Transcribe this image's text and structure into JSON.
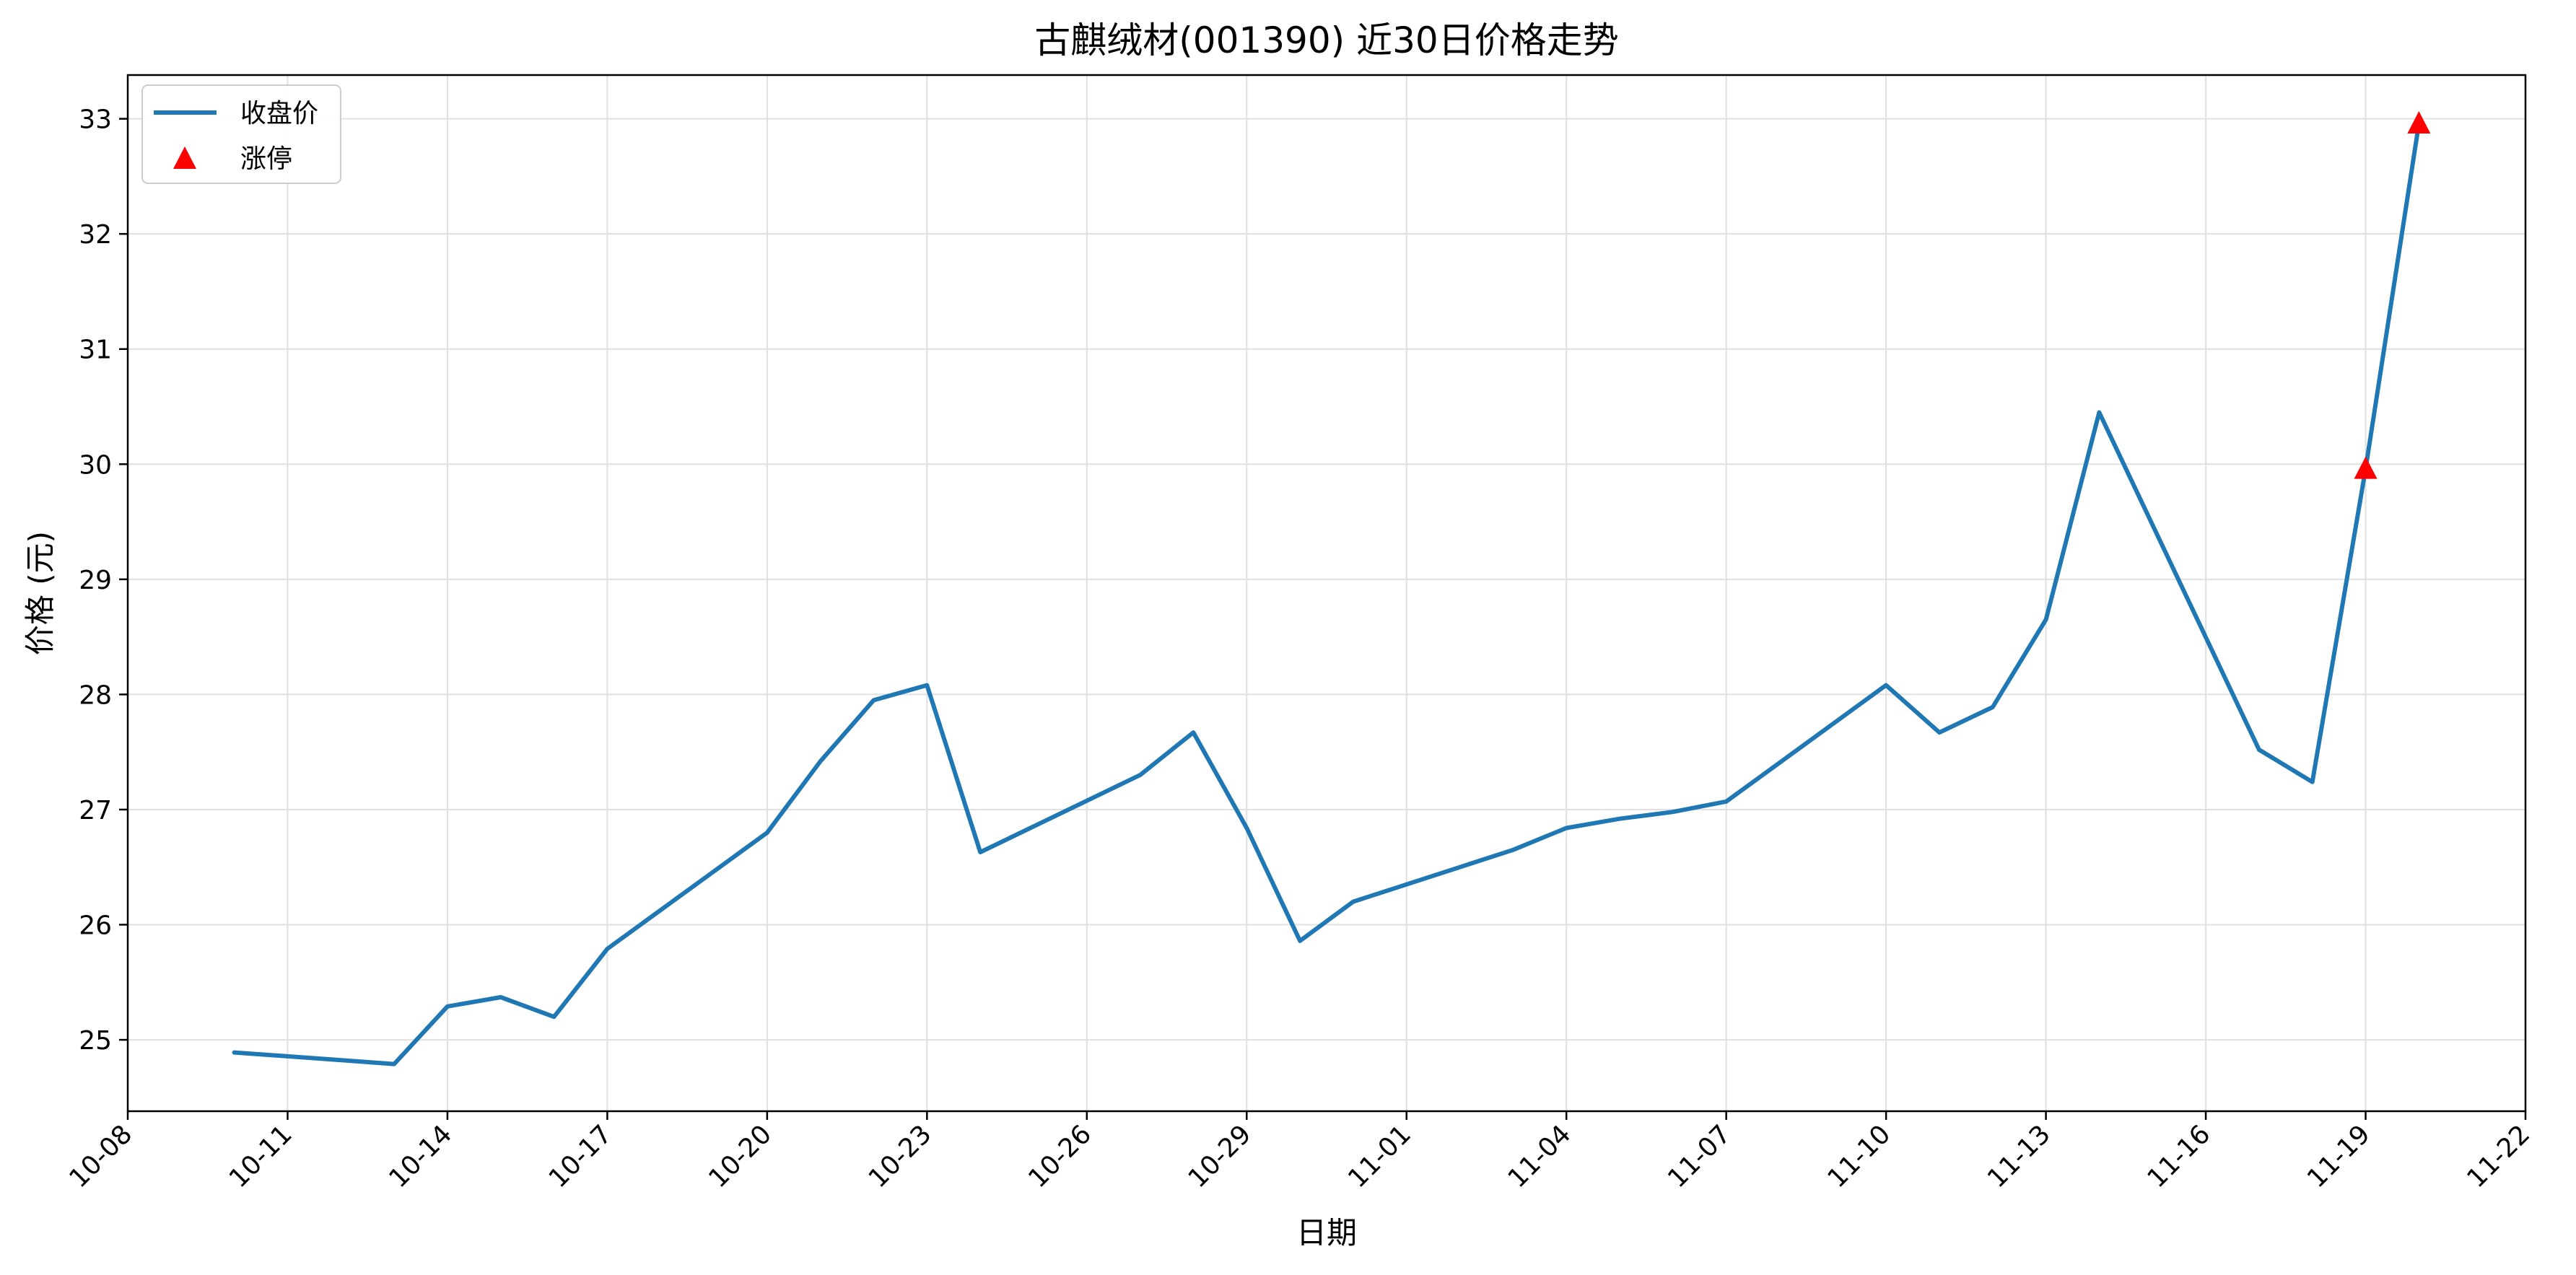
{
  "chart_data": {
    "type": "line",
    "title": "古麒绒材(001390) 近30日价格走势",
    "xlabel": "日期",
    "ylabel": "价格 (元)",
    "x_ticks": [
      "10-08",
      "10-11",
      "10-14",
      "10-17",
      "10-20",
      "10-23",
      "10-26",
      "10-29",
      "11-01",
      "11-04",
      "11-07",
      "11-10",
      "11-13",
      "11-16",
      "11-19",
      "11-22"
    ],
    "y_ticks": [
      "25",
      "26",
      "27",
      "28",
      "29",
      "30",
      "31",
      "32",
      "33"
    ],
    "xlim": [
      "2025-10-08",
      "2025-11-22"
    ],
    "ylim": [
      24.38,
      33.38
    ],
    "grid": true,
    "legend_position": "top-left",
    "series": [
      {
        "name": "收盘价",
        "color": "#1f77b4",
        "points": [
          {
            "date": "2025-10-10",
            "value": 24.89
          },
          {
            "date": "2025-10-13",
            "value": 24.79
          },
          {
            "date": "2025-10-14",
            "value": 25.29
          },
          {
            "date": "2025-10-15",
            "value": 25.37
          },
          {
            "date": "2025-10-16",
            "value": 25.2
          },
          {
            "date": "2025-10-17",
            "value": 25.79
          },
          {
            "date": "2025-10-20",
            "value": 26.8
          },
          {
            "date": "2025-10-21",
            "value": 27.42
          },
          {
            "date": "2025-10-22",
            "value": 27.95
          },
          {
            "date": "2025-10-23",
            "value": 28.08
          },
          {
            "date": "2025-10-24",
            "value": 26.63
          },
          {
            "date": "2025-10-27",
            "value": 27.3
          },
          {
            "date": "2025-10-28",
            "value": 27.67
          },
          {
            "date": "2025-10-29",
            "value": 26.84
          },
          {
            "date": "2025-10-30",
            "value": 25.86
          },
          {
            "date": "2025-10-31",
            "value": 26.2
          },
          {
            "date": "2025-11-03",
            "value": 26.65
          },
          {
            "date": "2025-11-04",
            "value": 26.84
          },
          {
            "date": "2025-11-05",
            "value": 26.92
          },
          {
            "date": "2025-11-06",
            "value": 26.98
          },
          {
            "date": "2025-11-07",
            "value": 27.07
          },
          {
            "date": "2025-11-10",
            "value": 28.08
          },
          {
            "date": "2025-11-11",
            "value": 27.67
          },
          {
            "date": "2025-11-12",
            "value": 27.89
          },
          {
            "date": "2025-11-13",
            "value": 28.65
          },
          {
            "date": "2025-11-14",
            "value": 30.45
          },
          {
            "date": "2025-11-17",
            "value": 27.52
          },
          {
            "date": "2025-11-18",
            "value": 27.24
          },
          {
            "date": "2025-11-19",
            "value": 29.96
          },
          {
            "date": "2025-11-20",
            "value": 32.96
          }
        ]
      },
      {
        "name": "涨停",
        "color": "#ff0000",
        "marker": "triangle",
        "points": [
          {
            "date": "2025-11-19",
            "value": 29.96
          },
          {
            "date": "2025-11-20",
            "value": 32.96
          }
        ]
      }
    ]
  }
}
